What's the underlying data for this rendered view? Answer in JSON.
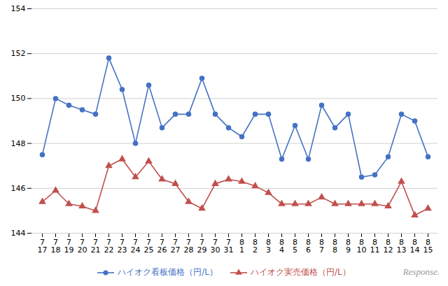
{
  "chart_data": {
    "type": "line",
    "categories": [
      "7\n17",
      "7\n18",
      "7\n19",
      "7\n20",
      "7\n21",
      "7\n22",
      "7\n23",
      "7\n24",
      "7\n25",
      "7\n26",
      "7\n27",
      "7\n28",
      "7\n29",
      "7\n30",
      "7\n31",
      "8\n1",
      "8\n2",
      "8\n3",
      "8\n4",
      "8\n5",
      "8\n6",
      "8\n7",
      "8\n8",
      "8\n9",
      "8\n10",
      "8\n11",
      "8\n12",
      "8\n13",
      "8\n14",
      "8\n15"
    ],
    "series": [
      {
        "name": "ハイオク看板価格（円/L）",
        "color": "#4472C4",
        "marker": "circle",
        "values": [
          147.5,
          150.0,
          149.7,
          149.5,
          149.3,
          151.8,
          150.4,
          148.0,
          150.6,
          148.7,
          149.3,
          149.3,
          150.9,
          149.3,
          148.7,
          148.3,
          149.3,
          149.3,
          147.3,
          148.8,
          147.3,
          149.7,
          148.7,
          149.3,
          146.5,
          146.6,
          147.4,
          149.3,
          149.0,
          147.4
        ]
      },
      {
        "name": "ハイオク実売価格（円/L）",
        "color": "#C0504D",
        "marker": "triangle",
        "values": [
          145.4,
          145.9,
          145.3,
          145.2,
          145.0,
          147.0,
          147.3,
          146.5,
          147.2,
          146.4,
          146.2,
          145.4,
          145.1,
          146.2,
          146.4,
          146.3,
          146.1,
          145.8,
          145.3,
          145.3,
          145.3,
          145.6,
          145.3,
          145.3,
          145.3,
          145.3,
          145.2,
          146.3,
          144.8,
          145.1
        ]
      }
    ],
    "ylim": [
      144,
      154
    ],
    "yticks": [
      144,
      146,
      148,
      150,
      152,
      154
    ],
    "grid": true,
    "legend": "lower center",
    "annotations": [
      "Response."
    ]
  }
}
